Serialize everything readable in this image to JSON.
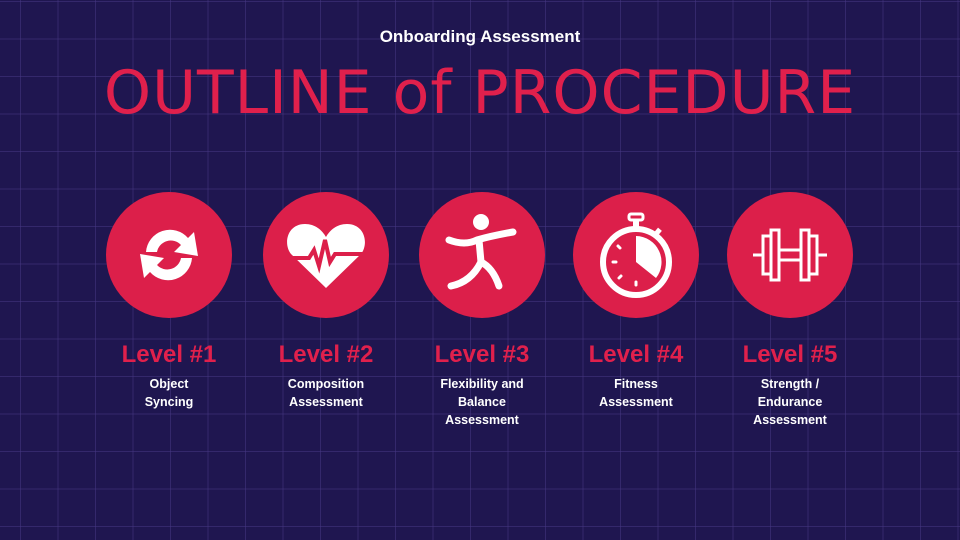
{
  "header": {
    "subtitle": "Onboarding Assessment",
    "title": "OUTLINE of PROCEDURE"
  },
  "colors": {
    "background": "#1f1650",
    "accent": "#dc1f4a",
    "text": "#ffffff"
  },
  "levels": [
    {
      "label": "Level #1",
      "description": "Object\nSyncing",
      "icon": "sync-icon"
    },
    {
      "label": "Level #2",
      "description": "Composition\nAssessment",
      "icon": "heartbeat-icon"
    },
    {
      "label": "Level #3",
      "description": "Flexibility and\nBalance\nAssessment",
      "icon": "stretching-person-icon"
    },
    {
      "label": "Level #4",
      "description": "Fitness\nAssessment",
      "icon": "stopwatch-icon"
    },
    {
      "label": "Level #5",
      "description": "Strength /\nEndurance\nAssessment",
      "icon": "dumbbell-icon"
    }
  ]
}
